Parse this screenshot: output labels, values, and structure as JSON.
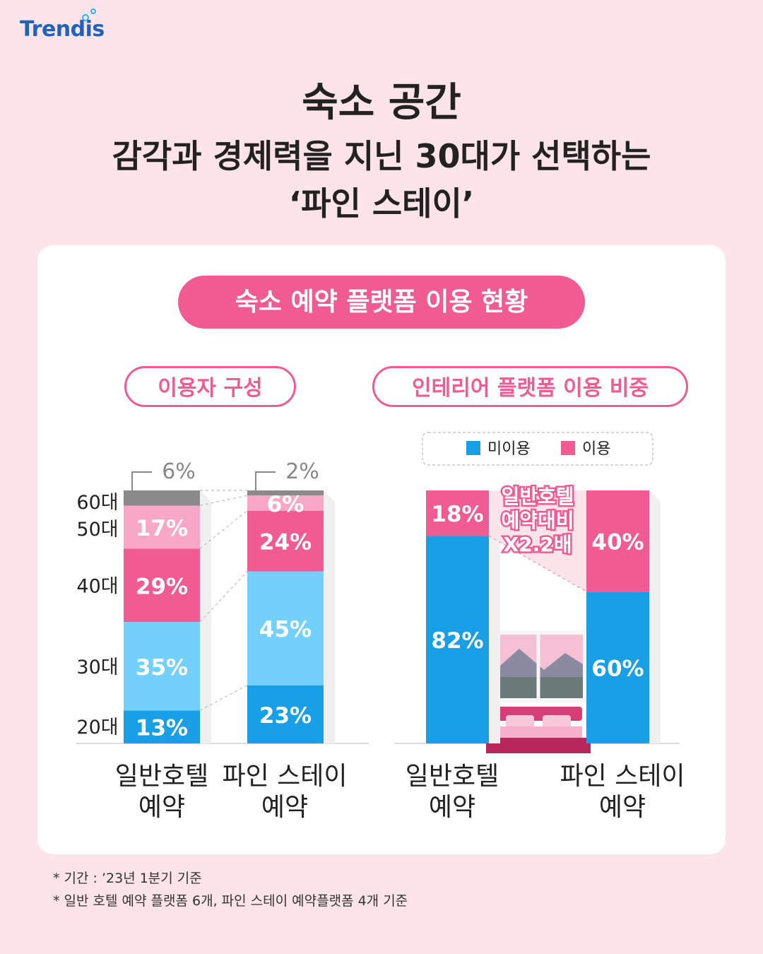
{
  "logo": {
    "text": "Trendis"
  },
  "title": {
    "line1": "숙소 공간",
    "line2": "감각과 경제력을 지닌 30대가 선택하는",
    "line3": "‘파인 스테이’"
  },
  "main_pill": "숙소 예약 플랫폼 이용 현황",
  "left_pill": "이용자 구성",
  "right_pill": "인테리어 플랫폼 이용 비중",
  "colors": {
    "60s": "#8a8a8a",
    "50s": "#f8a8c4",
    "40s": "#f05b92",
    "30s": "#72d0fb",
    "20s": "#189fe6",
    "non_use": "#189fe6",
    "use": "#f05b92",
    "accent": "#f05b92"
  },
  "chart_data": [
    {
      "type": "bar",
      "stacked": true,
      "title": "이용자 구성",
      "categories": [
        "일반호텔\n예약",
        "파인 스테이\n예약"
      ],
      "series": [
        {
          "name": "20대",
          "values": [
            13,
            23
          ]
        },
        {
          "name": "30대",
          "values": [
            35,
            45
          ]
        },
        {
          "name": "40대",
          "values": [
            29,
            24
          ]
        },
        {
          "name": "50대",
          "values": [
            17,
            6
          ]
        },
        {
          "name": "60대",
          "values": [
            6,
            2
          ]
        }
      ],
      "labels": [
        [
          "13%",
          "35%",
          "29%",
          "17%",
          "6%"
        ],
        [
          "23%",
          "45%",
          "24%",
          "6%",
          "2%"
        ]
      ],
      "ylim": [
        0,
        100
      ]
    },
    {
      "type": "bar",
      "stacked": true,
      "title": "인테리어 플랫폼 이용 비중",
      "categories": [
        "일반호텔\n예약",
        "파인 스테이\n예약"
      ],
      "series": [
        {
          "name": "미이용",
          "values": [
            82,
            60
          ]
        },
        {
          "name": "이용",
          "values": [
            18,
            40
          ]
        }
      ],
      "labels": [
        [
          "82%",
          "18%"
        ],
        [
          "60%",
          "40%"
        ]
      ],
      "legend": "top",
      "annotation": "일반호텔\n예약대비\nX2.2배",
      "ylim": [
        0,
        100
      ]
    }
  ],
  "footnotes": [
    "* 기간 : ’23년 1분기 기준",
    "* 일반 호텔 예약 플랫폼 6개, 파인 스테이 예약플랫폼 4개 기준"
  ]
}
